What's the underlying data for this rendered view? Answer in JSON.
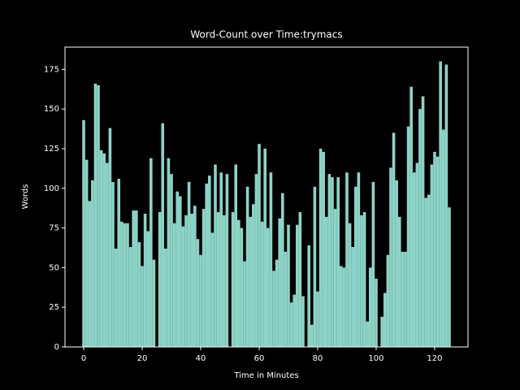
{
  "chart_data": {
    "type": "bar",
    "title": "Word-Count over Time:trymacs",
    "x_label": "Time in Minutes",
    "y_label": "Words",
    "color": "#8dd3c7",
    "x": [
      0,
      1,
      2,
      3,
      4,
      5,
      6,
      7,
      8,
      9,
      10,
      11,
      12,
      13,
      14,
      15,
      16,
      17,
      18,
      19,
      20,
      21,
      22,
      23,
      24,
      25,
      26,
      27,
      28,
      29,
      30,
      31,
      32,
      33,
      34,
      35,
      36,
      37,
      38,
      39,
      40,
      41,
      42,
      43,
      44,
      45,
      46,
      47,
      48,
      49,
      50,
      51,
      52,
      53,
      54,
      55,
      56,
      57,
      58,
      59,
      60,
      61,
      62,
      63,
      64,
      65,
      66,
      67,
      68,
      69,
      70,
      71,
      72,
      73,
      74,
      75,
      76,
      77,
      78,
      79,
      80,
      81,
      82,
      83,
      84,
      85,
      86,
      87,
      88,
      89,
      90,
      91,
      92,
      93,
      94,
      95,
      96,
      97,
      98,
      99,
      100,
      101,
      102,
      103,
      104,
      105,
      106,
      107,
      108,
      109,
      110,
      111,
      112,
      113,
      114,
      115,
      116,
      117,
      118,
      119,
      120,
      121,
      122,
      123,
      124,
      125
    ],
    "values": [
      143,
      118,
      92,
      105,
      166,
      165,
      124,
      122,
      116,
      138,
      104,
      62,
      106,
      79,
      78,
      78,
      63,
      86,
      86,
      66,
      51,
      84,
      73,
      119,
      55,
      0,
      85,
      141,
      62,
      119,
      109,
      78,
      98,
      95,
      76,
      83,
      104,
      84,
      89,
      68,
      58,
      87,
      103,
      108,
      72,
      115,
      85,
      110,
      83,
      109,
      0,
      85,
      115,
      80,
      75,
      54,
      101,
      82,
      90,
      109,
      128,
      79,
      125,
      75,
      110,
      48,
      55,
      81,
      97,
      60,
      77,
      28,
      33,
      77,
      85,
      32,
      0,
      64,
      14,
      101,
      35,
      125,
      123,
      82,
      109,
      107,
      87,
      107,
      51,
      50,
      110,
      78,
      63,
      101,
      110,
      83,
      85,
      16,
      50,
      104,
      43,
      0,
      19,
      34,
      58,
      113,
      135,
      105,
      82,
      60,
      60,
      139,
      164,
      110,
      116,
      150,
      158,
      94,
      96,
      115,
      123,
      120,
      180,
      137,
      178,
      88
    ],
    "xlim": [
      -6.4,
      131.4
    ],
    "xticks": [
      0,
      20,
      40,
      60,
      80,
      100,
      120
    ],
    "ylim": [
      0,
      189
    ],
    "yticks": [
      0,
      25,
      50,
      75,
      100,
      125,
      150,
      175
    ]
  }
}
